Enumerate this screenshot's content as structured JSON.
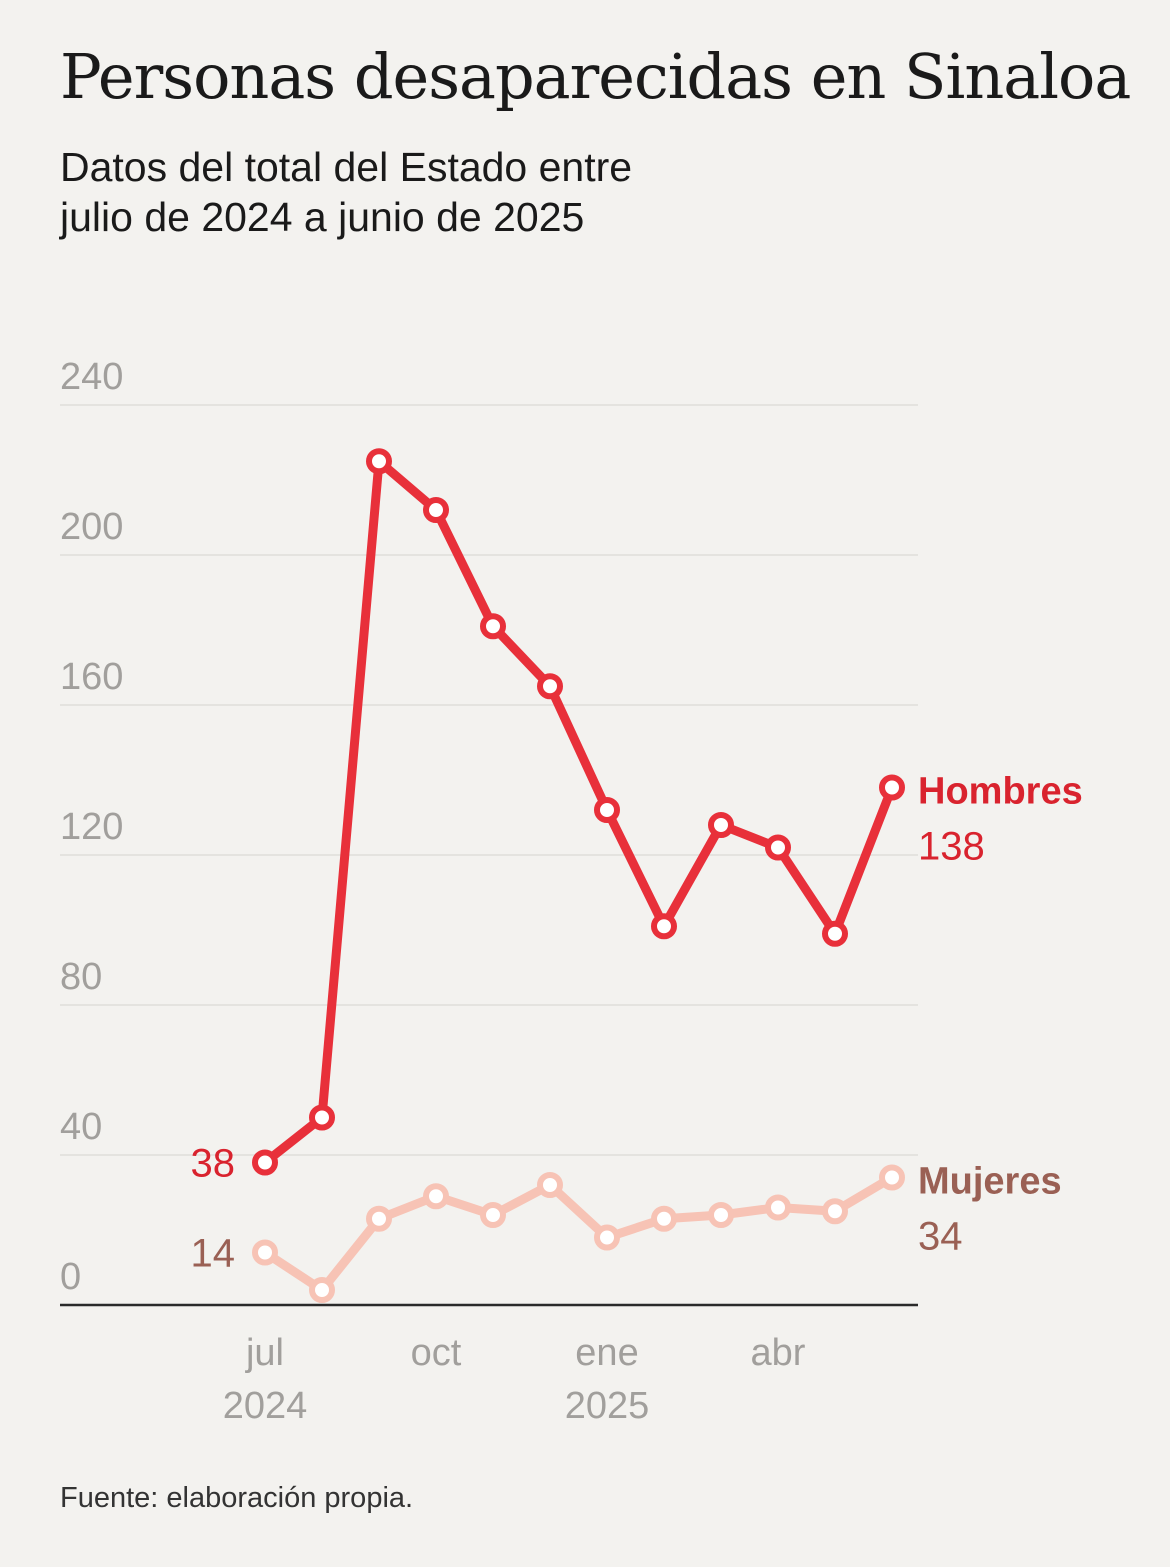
{
  "title": "Personas desaparecidas en Sinaloa",
  "subtitle_line1": "Datos del total del Estado entre",
  "subtitle_line2": "julio de 2024 a junio de 2025",
  "source": "Fuente: elaboración propia.",
  "colors": {
    "hombres": "#e8303a",
    "mujeres": "#f7c3b5",
    "hombres_label": "#d9232e",
    "mujeres_label": "#9a6054",
    "axis_text": "#a19f9c",
    "grid": "#e4e3df",
    "baseline": "#2a2a2a",
    "background": "#f3f2ef"
  },
  "chart_data": {
    "type": "line",
    "title": "Personas desaparecidas en Sinaloa",
    "x": [
      "2024-07",
      "2024-08",
      "2024-09",
      "2024-10",
      "2024-11",
      "2024-12",
      "2025-01",
      "2025-02",
      "2025-03",
      "2025-04",
      "2025-05",
      "2025-06"
    ],
    "ylim": [
      0,
      240
    ],
    "yticks": [
      "240",
      "200",
      "160",
      "120",
      "80",
      "40",
      "0"
    ],
    "xticks": [
      {
        "month": "jul",
        "year": "2024"
      },
      {
        "month": "oct",
        "year": ""
      },
      {
        "month": "ene",
        "year": "2025"
      },
      {
        "month": "abr",
        "year": ""
      }
    ],
    "grid": true,
    "series": [
      {
        "name": "Hombres",
        "values": [
          38,
          50,
          225,
          212,
          181,
          165,
          132,
          101,
          128,
          122,
          99,
          138
        ],
        "start_label": "38",
        "end_label": "138"
      },
      {
        "name": "Mujeres",
        "values": [
          14,
          4,
          23,
          29,
          24,
          32,
          18,
          23,
          24,
          26,
          25,
          34
        ],
        "start_label": "14",
        "end_label": "34"
      }
    ]
  }
}
